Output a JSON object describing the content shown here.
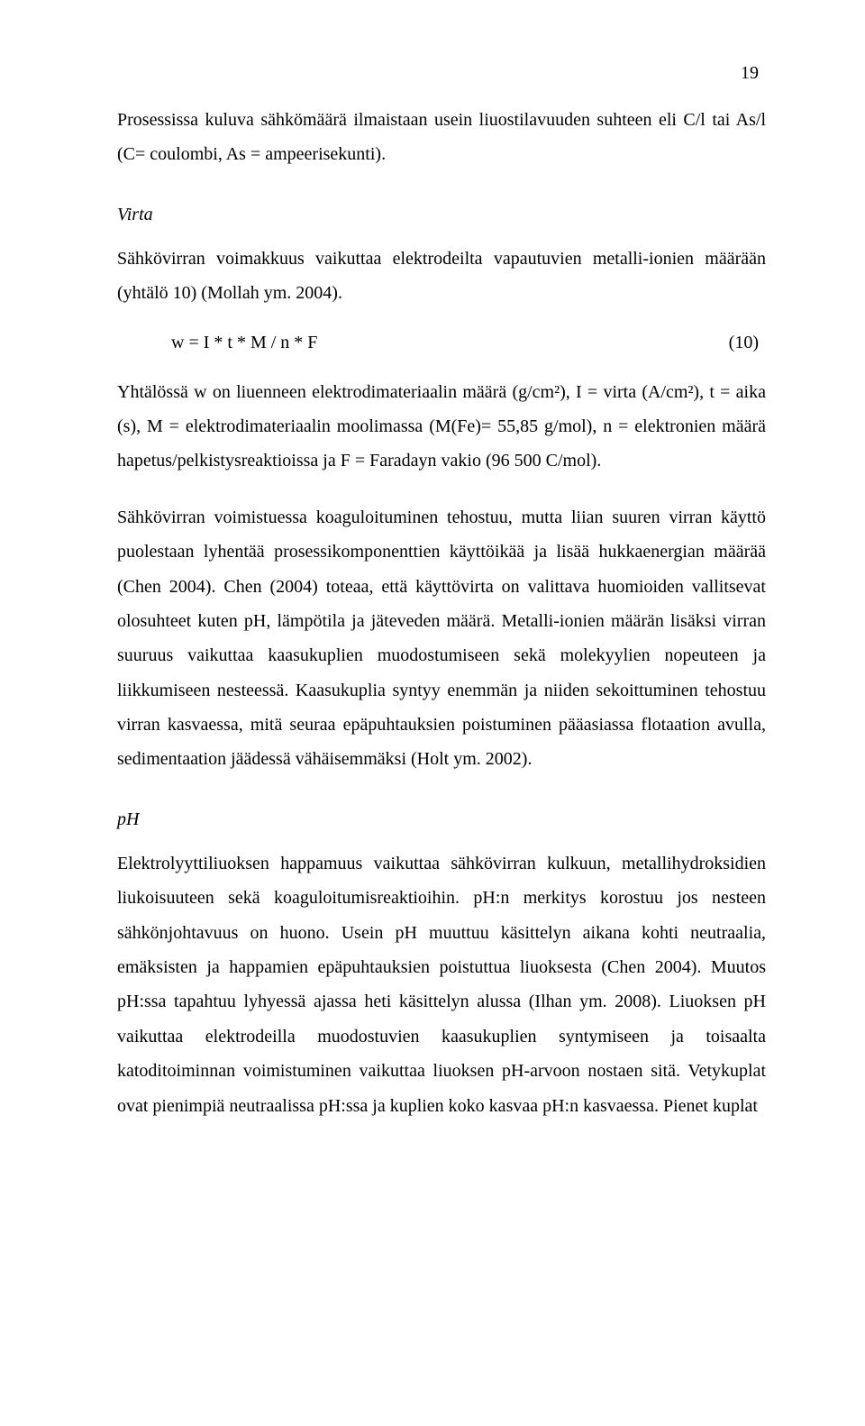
{
  "pageNumber": "19",
  "para1": "Prosessissa kuluva sähkömäärä ilmaistaan usein liuostilavuuden suhteen eli C/l tai As/l (C= coulombi, As = ampeerisekunti).",
  "heading1": "Virta",
  "para2": "Sähkövirran voimakkuus vaikuttaa elektrodeilta vapautuvien metalli-ionien määrään (yhtälö 10) (Mollah ym. 2004).",
  "equation": {
    "expr": "w = I * t * M / n * F",
    "num": "(10)"
  },
  "para3": "Yhtälössä w on liuenneen elektrodimateriaalin määrä (g/cm²), I = virta (A/cm²), t = aika (s), M = elektrodimateriaalin moolimassa (M(Fe)= 55,85 g/mol), n = elektronien määrä hapetus/pelkistysreaktioissa ja F = Faradayn vakio (96 500 C/mol).",
  "para4": "Sähkövirran voimistuessa koaguloituminen tehostuu, mutta liian suuren virran käyttö puolestaan lyhentää prosessikomponenttien käyttöikää ja lisää hukkaenergian määrää (Chen 2004). Chen (2004) toteaa, että käyttövirta on valittava huomioiden vallitsevat olosuhteet kuten pH, lämpötila ja jäteveden määrä. Metalli-ionien määrän lisäksi virran suuruus vaikuttaa kaasukuplien muodostumiseen sekä molekyylien nopeuteen ja liikkumiseen nesteessä. Kaasukuplia syntyy enemmän ja niiden sekoittuminen tehostuu virran kasvaessa, mitä seuraa epäpuhtauksien poistuminen pääasiassa flotaation avulla, sedimentaation jäädessä vähäisemmäksi (Holt ym. 2002).",
  "heading2": "pH",
  "para5": "Elektrolyyttiliuoksen happamuus vaikuttaa sähkövirran kulkuun, metallihydroksidien liukoisuuteen sekä koaguloitumisreaktioihin. pH:n merkitys korostuu jos nesteen sähkönjohtavuus on huono. Usein pH muuttuu käsittelyn aikana kohti neutraalia, emäksisten ja happamien epäpuhtauksien poistuttua liuoksesta (Chen 2004). Muutos pH:ssa tapahtuu lyhyessä ajassa heti käsittelyn alussa (Ilhan ym. 2008). Liuoksen pH vaikuttaa elektrodeilla muodostuvien kaasukuplien syntymiseen ja toisaalta katoditoiminnan voimistuminen vaikuttaa liuoksen pH-arvoon nostaen sitä. Vetykuplat ovat pienimpiä neutraalissa pH:ssa ja kuplien koko kasvaa pH:n kasvaessa. Pienet kuplat"
}
